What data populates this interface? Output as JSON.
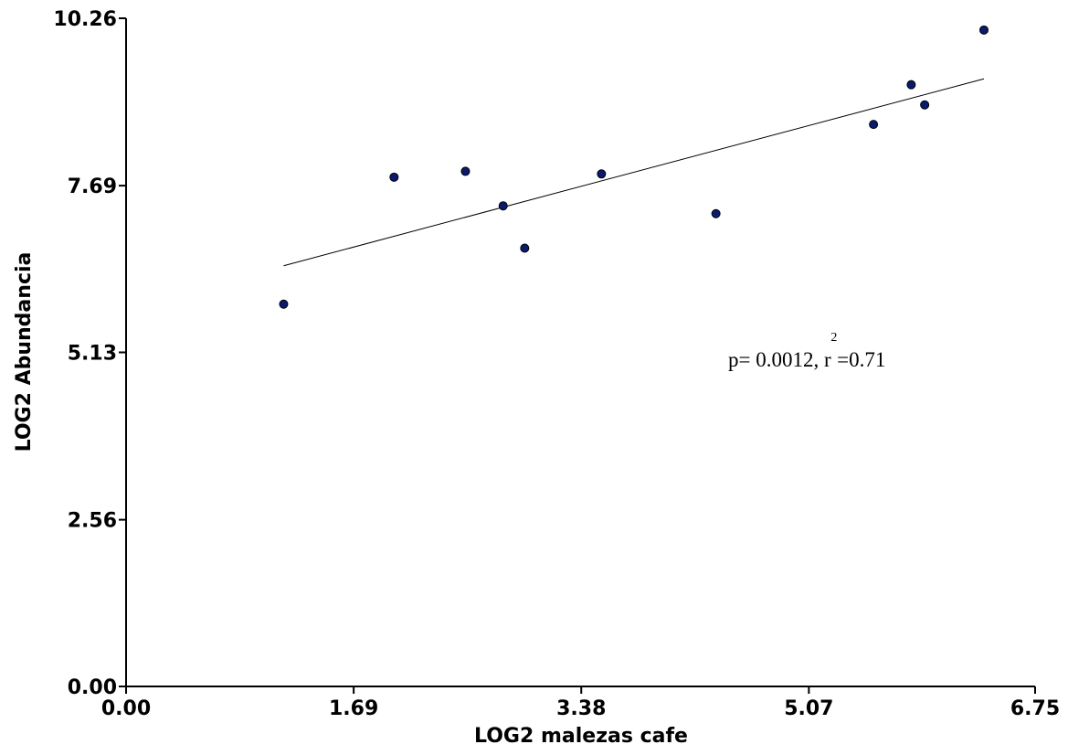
{
  "chart_data": {
    "type": "scatter",
    "xlabel": "LOG2 malezas cafe",
    "ylabel": "LOG2 Abundancia",
    "xlim": [
      0,
      6.75
    ],
    "ylim": [
      0,
      10.26
    ],
    "xticks": [
      "0.00",
      "1.69",
      "3.38",
      "5.07",
      "6.75"
    ],
    "yticks": [
      "0.00",
      "2.56",
      "5.13",
      "7.69",
      "10.26"
    ],
    "grid": false,
    "points": [
      {
        "x": 1.17,
        "y": 5.87
      },
      {
        "x": 1.99,
        "y": 7.82
      },
      {
        "x": 2.52,
        "y": 7.91
      },
      {
        "x": 2.8,
        "y": 7.38
      },
      {
        "x": 2.96,
        "y": 6.73
      },
      {
        "x": 3.53,
        "y": 7.87
      },
      {
        "x": 4.38,
        "y": 7.26
      },
      {
        "x": 5.55,
        "y": 8.63
      },
      {
        "x": 5.83,
        "y": 9.24
      },
      {
        "x": 5.93,
        "y": 8.93
      },
      {
        "x": 6.37,
        "y": 10.08
      }
    ],
    "trendline": {
      "x": [
        1.17,
        6.37
      ],
      "y": [
        6.46,
        9.33
      ]
    },
    "annotation": {
      "text_before": "p= 0.0012, r",
      "superscript": "2",
      "text_after": "=0.71"
    },
    "point_color": "#0a1a6e"
  }
}
